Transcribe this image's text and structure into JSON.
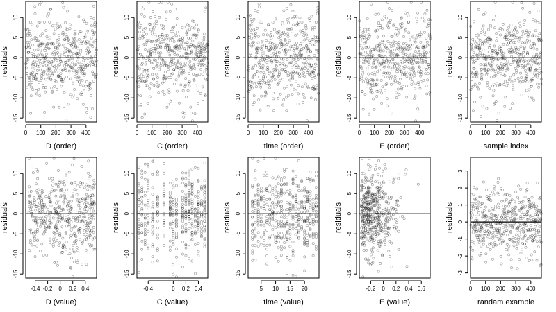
{
  "chart_data": [
    {
      "type": "scatter",
      "xlabel": "D (order)",
      "ylabel": "residuals",
      "xlim": [
        0,
        470
      ],
      "ylim": [
        -16,
        14
      ],
      "xticks": [
        0,
        100,
        200,
        300,
        400
      ],
      "yticks": [
        -15,
        -10,
        -5,
        0,
        5,
        10
      ],
      "n": 470,
      "mode": "order",
      "sd": 5.5,
      "seed": 11
    },
    {
      "type": "scatter",
      "xlabel": "C (order)",
      "ylabel": "residuals",
      "xlim": [
        0,
        470
      ],
      "ylim": [
        -16,
        14
      ],
      "xticks": [
        0,
        100,
        200,
        300,
        400
      ],
      "yticks": [
        -15,
        -10,
        -5,
        0,
        5,
        10
      ],
      "n": 470,
      "mode": "order",
      "sd": 5.5,
      "seed": 23
    },
    {
      "type": "scatter",
      "xlabel": "time (order)",
      "ylabel": "residuals",
      "xlim": [
        0,
        470
      ],
      "ylim": [
        -16,
        14
      ],
      "xticks": [
        0,
        100,
        200,
        300,
        400
      ],
      "yticks": [
        -15,
        -10,
        -5,
        0,
        5,
        10
      ],
      "n": 470,
      "mode": "order",
      "sd": 5.5,
      "seed": 37
    },
    {
      "type": "scatter",
      "xlabel": "E (order)",
      "ylabel": "residuals",
      "xlim": [
        0,
        470
      ],
      "ylim": [
        -16,
        14
      ],
      "xticks": [
        0,
        100,
        200,
        300,
        400
      ],
      "yticks": [
        -15,
        -10,
        -5,
        0,
        5,
        10
      ],
      "n": 470,
      "mode": "order",
      "sd": 5.5,
      "seed": 41
    },
    {
      "type": "scatter",
      "xlabel": "sample index",
      "ylabel": "residuals",
      "xlim": [
        0,
        470
      ],
      "ylim": [
        -16,
        14
      ],
      "xticks": [
        0,
        100,
        200,
        300,
        400
      ],
      "yticks": [
        -15,
        -10,
        -5,
        0,
        5,
        10
      ],
      "n": 470,
      "mode": "order",
      "sd": 5.5,
      "seed": 53
    },
    {
      "type": "scatter",
      "xlabel": "D (value)",
      "ylabel": "residuals",
      "xlim": [
        -0.55,
        0.58
      ],
      "ylim": [
        -16,
        14
      ],
      "xticks": [
        -0.4,
        -0.2,
        0.0,
        0.2,
        0.4
      ],
      "ytick_labels": [
        -15,
        -10,
        -5,
        0,
        5,
        10
      ],
      "yticks": [
        -15,
        -10,
        -5,
        0,
        5,
        10
      ],
      "n": 470,
      "mode": "uniform",
      "xrange": [
        -0.5,
        0.55
      ],
      "sd": 5.5,
      "seed": 61
    },
    {
      "type": "scatter",
      "xlabel": "C (value)",
      "ylabel": "residuals",
      "xlim": [
        -0.58,
        0.55
      ],
      "ylim": [
        -16,
        14
      ],
      "xticks": [
        -0.4,
        0.0,
        0.2,
        0.4
      ],
      "yticks": [
        -15,
        -10,
        -5,
        0,
        5,
        10
      ],
      "n": 470,
      "mode": "discrete",
      "levels": [
        -0.55,
        -0.5,
        -0.45,
        -0.4,
        -0.33,
        -0.25,
        -0.15,
        -0.05,
        0.0,
        0.05,
        0.15,
        0.2,
        0.25,
        0.3,
        0.35,
        0.4,
        0.45,
        0.5
      ],
      "sd": 5.5,
      "seed": 71
    },
    {
      "type": "scatter",
      "xlabel": "time (value)",
      "ylabel": "residuals",
      "xlim": [
        0.5,
        25
      ],
      "ylim": [
        -16,
        14
      ],
      "xticks": [
        5,
        10,
        15,
        20
      ],
      "yticks": [
        -15,
        -10,
        -5,
        0,
        5,
        10
      ],
      "n": 470,
      "mode": "discrete",
      "levels": [
        2,
        3,
        4,
        5,
        6,
        7,
        8,
        9,
        10,
        11,
        12,
        13,
        14,
        15,
        16,
        17,
        18,
        19,
        20,
        21,
        22,
        23,
        24
      ],
      "sd": 5.5,
      "seed": 83
    },
    {
      "type": "scatter",
      "xlabel": "E (value)",
      "ylabel": "residuals",
      "xlim": [
        -0.38,
        0.74
      ],
      "ylim": [
        -16,
        14
      ],
      "xticks": [
        -0.2,
        0.0,
        0.2,
        0.4,
        0.6
      ],
      "yticks": [
        -15,
        -10,
        -5,
        0,
        5,
        10
      ],
      "n": 470,
      "mode": "skew",
      "xrange": [
        -0.35,
        0.7
      ],
      "sd": 5.5,
      "seed": 97
    },
    {
      "type": "scatter",
      "xlabel": "randam example",
      "ylabel": "residuals",
      "xlim": [
        0,
        470
      ],
      "ylim": [
        -3.3,
        3.8
      ],
      "xticks": [
        0,
        100,
        200,
        300,
        400
      ],
      "yticks": [
        -3,
        -2,
        -1,
        0,
        1,
        2,
        3
      ],
      "n": 470,
      "mode": "order",
      "sd": 1.0,
      "seed": 101
    }
  ]
}
